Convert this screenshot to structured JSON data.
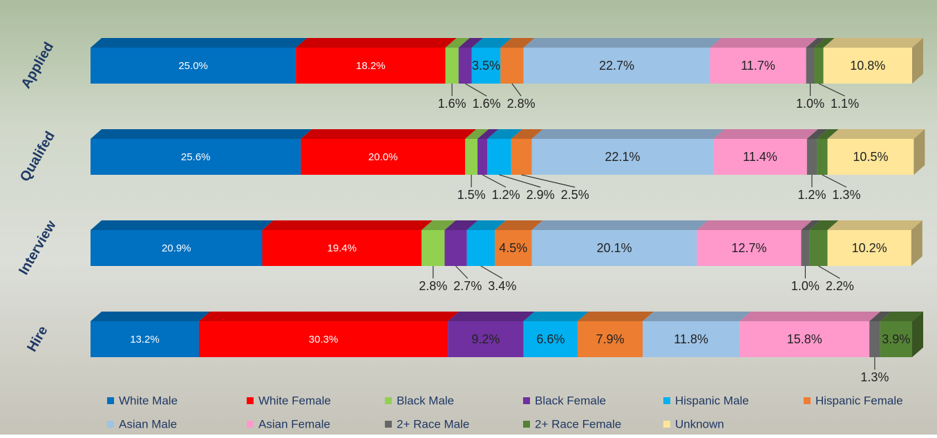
{
  "chart_data": {
    "type": "stacked-bar-3d",
    "categories": [
      "Applied",
      "Qualifed",
      "Interview",
      "Hire"
    ],
    "xlim": [
      0,
      100
    ],
    "series": [
      {
        "name": "White Male",
        "color": "#0070c0",
        "values": [
          25.0,
          25.6,
          20.9,
          13.2
        ],
        "value_labels": [
          "25.0%",
          "25.6%",
          "20.9%",
          "13.2%"
        ]
      },
      {
        "name": "White Female",
        "color": "#ff0000",
        "values": [
          18.2,
          20.0,
          19.4,
          30.3
        ],
        "value_labels": [
          "18.2%",
          "20.0%",
          "19.4%",
          "30.3%"
        ]
      },
      {
        "name": "Black Male",
        "color": "#92d050",
        "values": [
          1.6,
          1.5,
          2.8,
          null
        ],
        "value_labels": [
          "1.6%",
          "1.5%",
          "2.8%",
          null
        ]
      },
      {
        "name": "Black Female",
        "color": "#7030a0",
        "values": [
          1.6,
          1.2,
          2.7,
          9.2
        ],
        "value_labels": [
          "1.6%",
          "1.2%",
          "2.7%",
          "9.2%"
        ]
      },
      {
        "name": "Hispanic Male",
        "color": "#00b0f0",
        "values": [
          3.5,
          2.9,
          3.4,
          6.6
        ],
        "value_labels": [
          "3.5%",
          "2.9%",
          "3.4%",
          "6.6%"
        ]
      },
      {
        "name": "Hispanic Female",
        "color": "#ed7d31",
        "values": [
          2.8,
          2.5,
          4.5,
          7.9
        ],
        "value_labels": [
          "2.8%",
          "2.5%",
          "4.5%",
          "7.9%"
        ]
      },
      {
        "name": "Asian Male",
        "color": "#9dc3e6",
        "values": [
          22.7,
          22.1,
          20.1,
          11.8
        ],
        "value_labels": [
          "22.7%",
          "22.1%",
          "20.1%",
          "11.8%"
        ]
      },
      {
        "name": "Asian Female",
        "color": "#ff99cc",
        "values": [
          11.7,
          11.4,
          12.7,
          15.8
        ],
        "value_labels": [
          "11.7%",
          "11.4%",
          "12.7%",
          "15.8%"
        ]
      },
      {
        "name": "2+ Race Male",
        "color": "#666666",
        "values": [
          1.0,
          1.2,
          1.0,
          1.3
        ],
        "value_labels": [
          "1.0%",
          "1.2%",
          "1.0%",
          "1.3%"
        ]
      },
      {
        "name": "2+ Race Female",
        "color": "#548235",
        "values": [
          1.1,
          1.3,
          2.2,
          3.9
        ],
        "value_labels": [
          "1.1%",
          "1.3%",
          "2.2%",
          "3.9%"
        ]
      },
      {
        "name": "Unknown",
        "color": "#ffe699",
        "values": [
          10.8,
          10.5,
          10.2,
          null
        ],
        "value_labels": [
          "10.8%",
          "10.5%",
          "10.2%",
          null
        ]
      }
    ]
  }
}
